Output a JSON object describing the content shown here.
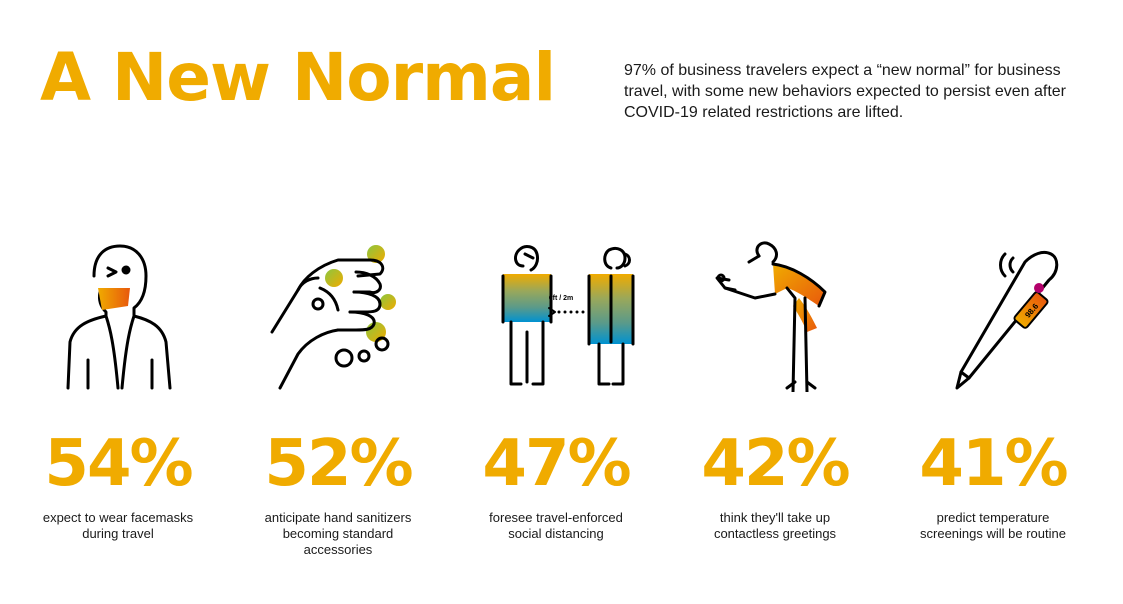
{
  "title": "A New Normal",
  "intro": "97% of business travelers expect a “new normal” for business travel, with some new behaviors expected to persist even after COVID-19 related restrictions are lifted.",
  "accent_color": "#f0ab00",
  "stats": [
    {
      "icon": "face-mask-icon",
      "value": "54%",
      "lines": [
        "expect to wear facemasks",
        "during travel"
      ]
    },
    {
      "icon": "hand-sanitizer-icon",
      "value": "52%",
      "lines": [
        "anticipate hand sanitizers",
        "becoming standard",
        "accessories"
      ]
    },
    {
      "icon": "social-distancing-icon",
      "value": "47%",
      "distance_label": "6ft / 2m",
      "lines": [
        "foresee travel-enforced",
        "social distancing"
      ]
    },
    {
      "icon": "contactless-greeting-icon",
      "value": "42%",
      "lines": [
        "think they'll take up",
        "contactless greetings"
      ]
    },
    {
      "icon": "thermometer-icon",
      "value": "41%",
      "thermometer_reading": "98.6",
      "lines": [
        "predict temperature",
        "screenings will be routine"
      ]
    }
  ]
}
